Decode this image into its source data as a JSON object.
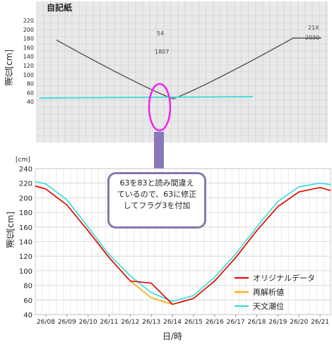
{
  "title_top": "自記紙",
  "top_ylabel": "潮位[cm]",
  "top_ticks": [
    "220",
    "200",
    "180",
    "160",
    "140",
    "120",
    "100",
    "80",
    "60",
    "40"
  ],
  "top_annotations": [
    "54",
    "1807",
    "21X",
    "2030"
  ],
  "callout_lines": [
    "63を83と読み間違え",
    "ているので、63に修正",
    "してフラグ3を付加"
  ],
  "unit_label": "[cm]",
  "colors": {
    "original": "#e10000",
    "reanalysis": "#ffa500",
    "astronomical": "#33dddd",
    "highlight": "#ee22ee",
    "arrow": "#8877bb"
  },
  "chart_data": {
    "type": "line",
    "categories": [
      "26/08",
      "26/09",
      "26/10",
      "26/11",
      "26/12",
      "26/13",
      "26/14",
      "26/15",
      "26/16",
      "26/17",
      "26/18",
      "26/19",
      "26/20",
      "26/21"
    ],
    "ylim": [
      40,
      240
    ],
    "yticks": [
      40,
      60,
      80,
      100,
      120,
      140,
      160,
      180,
      200,
      220,
      240
    ],
    "xlabel": "日/時",
    "ylabel": "潮位[cm]",
    "legend_position": "bottom-right",
    "grid": true,
    "series": [
      {
        "name": "オリジナルデータ",
        "color": "#e10000",
        "x": [
          7.5,
          8,
          9,
          10,
          11,
          12,
          13,
          14,
          15,
          16,
          17,
          18,
          19,
          20,
          21,
          21.5
        ],
        "values": [
          216,
          212,
          190,
          155,
          118,
          86,
          83,
          54,
          62,
          86,
          118,
          155,
          188,
          208,
          214,
          210
        ]
      },
      {
        "name": "再解析値",
        "color": "#ffa500",
        "x": [
          7.5,
          8,
          9,
          10,
          11,
          12,
          13,
          14,
          15,
          16,
          17,
          18,
          19,
          20,
          21,
          21.5
        ],
        "values": [
          216,
          212,
          190,
          155,
          118,
          86,
          63,
          54,
          62,
          86,
          118,
          155,
          188,
          208,
          214,
          210
        ]
      },
      {
        "name": "天文潮位",
        "color": "#33dddd",
        "x": [
          7.5,
          8,
          9,
          10,
          11,
          12,
          13,
          14,
          15,
          16,
          17,
          18,
          19,
          20,
          21,
          21.5
        ],
        "values": [
          222,
          219,
          197,
          160,
          122,
          93,
          70,
          58,
          66,
          91,
          123,
          160,
          195,
          215,
          220,
          218
        ]
      }
    ]
  }
}
